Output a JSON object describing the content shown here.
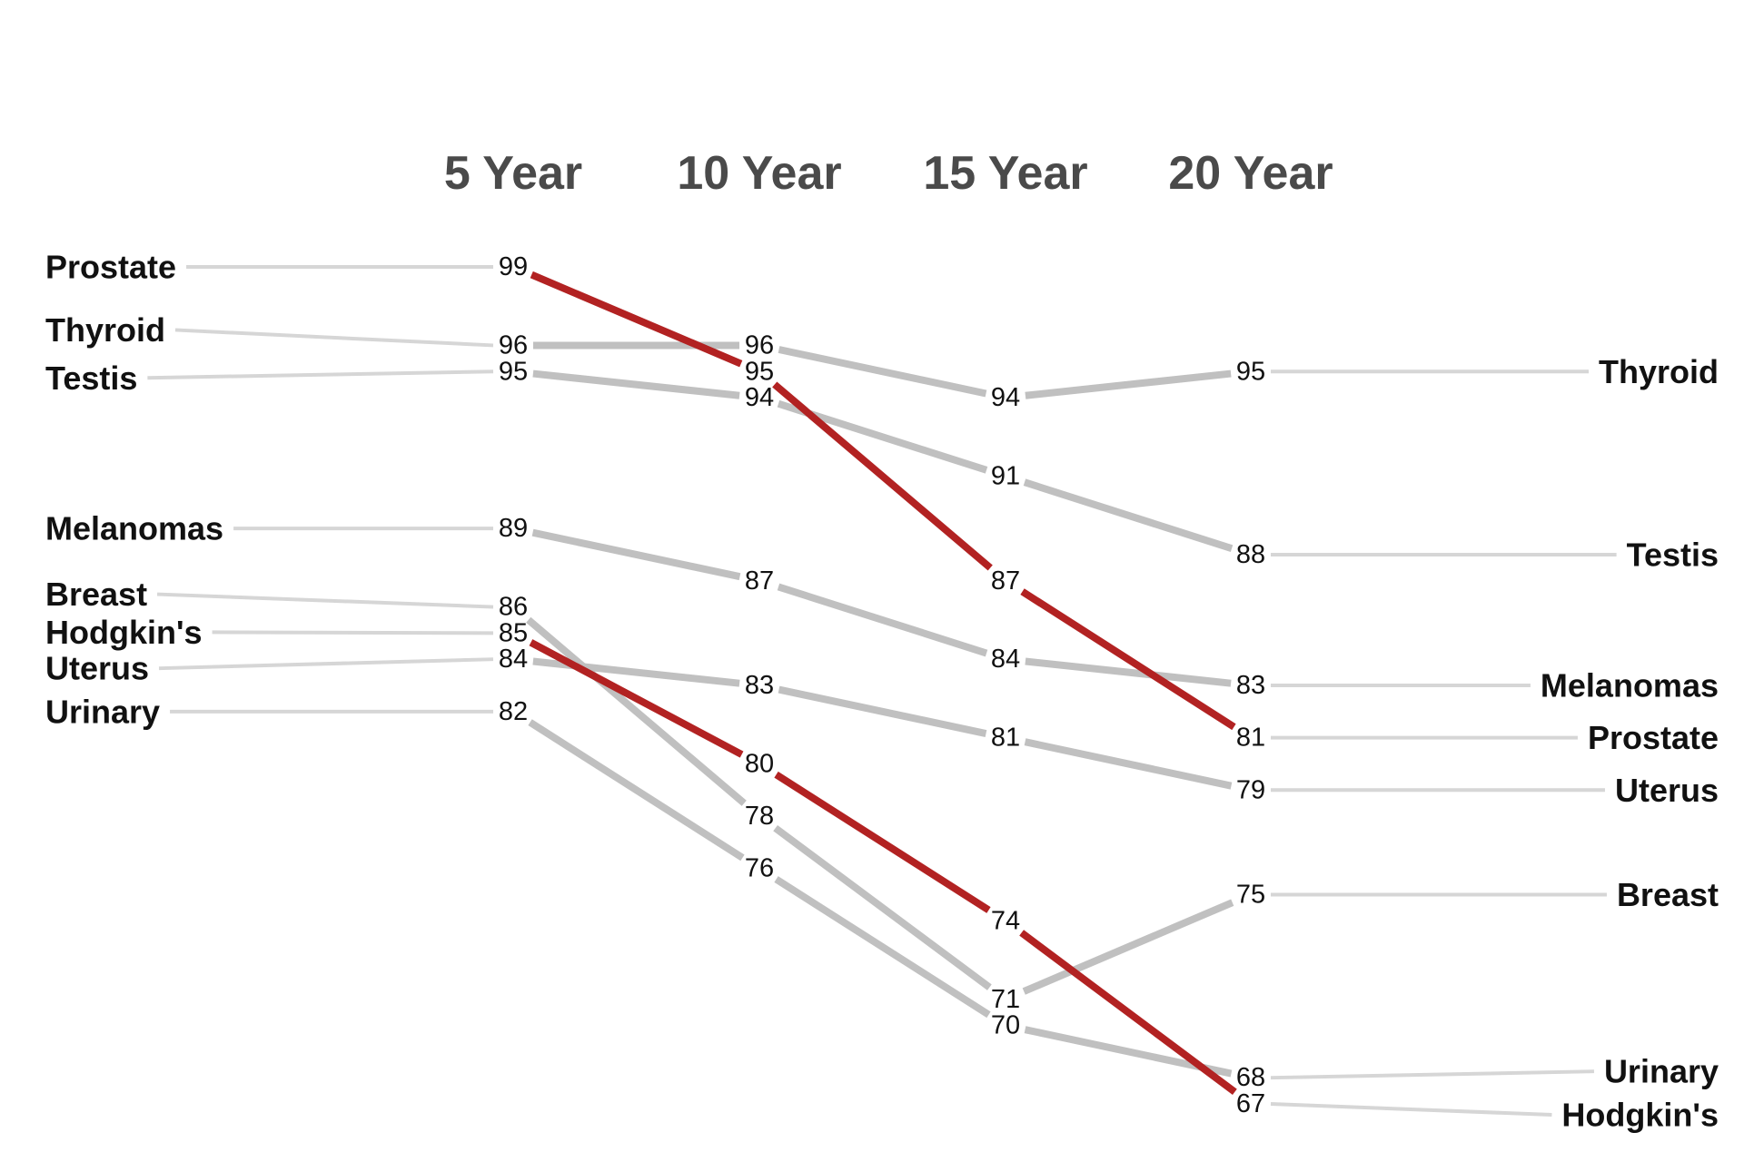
{
  "chart_data": {
    "type": "line",
    "title": "",
    "xlabel": "",
    "ylabel": "",
    "categories": [
      "5 Year",
      "10 Year",
      "15 Year",
      "20 Year"
    ],
    "ylim": [
      66,
      100
    ],
    "grid": false,
    "legend": "none",
    "colors": {
      "highlight": "#b22222",
      "default": "#c0c0c0",
      "leader": "#d6d6d6"
    },
    "series": [
      {
        "name": "Prostate",
        "values": [
          99,
          95,
          87,
          81
        ],
        "highlight": true
      },
      {
        "name": "Thyroid",
        "values": [
          96,
          96,
          94,
          95
        ],
        "highlight": false
      },
      {
        "name": "Testis",
        "values": [
          95,
          94,
          91,
          88
        ],
        "highlight": false
      },
      {
        "name": "Melanomas",
        "values": [
          89,
          87,
          84,
          83
        ],
        "highlight": false
      },
      {
        "name": "Breast",
        "values": [
          86,
          78,
          71,
          75
        ],
        "highlight": false
      },
      {
        "name": "Hodgkin's",
        "values": [
          85,
          80,
          74,
          67
        ],
        "highlight": true
      },
      {
        "name": "Uterus",
        "values": [
          84,
          83,
          81,
          79
        ],
        "highlight": false
      },
      {
        "name": "Urinary",
        "values": [
          82,
          76,
          70,
          68
        ],
        "highlight": false
      }
    ]
  }
}
